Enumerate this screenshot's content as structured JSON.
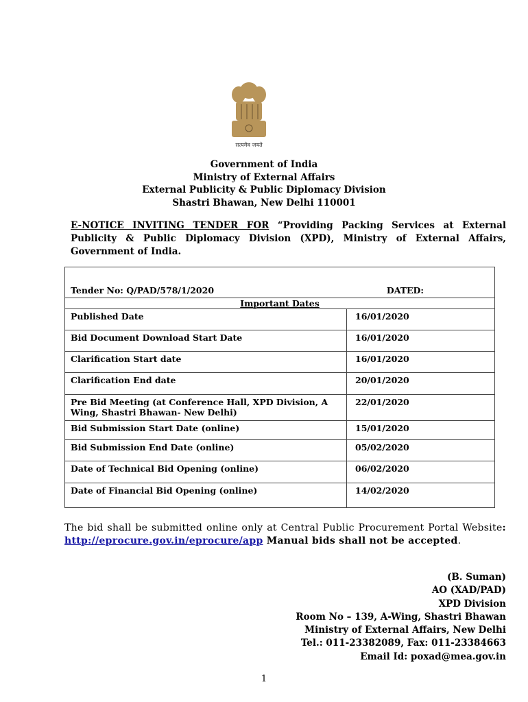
{
  "emblem": {
    "motto": "सत्यमेव जयते"
  },
  "header": [
    "Government of India",
    "Ministry of External Affairs",
    "External Publicity & Public Diplomacy Division",
    "Shastri Bhawan, New Delhi 110001"
  ],
  "notice": {
    "prefix": "E-NOTICE INVITING TENDER FOR",
    "text": " “Providing Packing Services at External Publicity & Public Diplomacy Division (XPD), Ministry of External Affairs, Government of India."
  },
  "table": {
    "tender_no": "Tender No: Q/PAD/578/1/2020",
    "dated": "DATED:",
    "section": "Important Dates",
    "rows": [
      {
        "label": "Published Date",
        "date": "16/01/2020"
      },
      {
        "label": "Bid Document Download Start Date",
        "date": "16/01/2020"
      },
      {
        "label": "Clarification Start date",
        "date": "16/01/2020"
      },
      {
        "label": "Clarification End date",
        "date": "20/01/2020"
      },
      {
        "label": "Pre Bid Meeting (at Conference Hall, XPD Division, A Wing, Shastri Bhawan- New Delhi)",
        "date": "22/01/2020"
      },
      {
        "label": "Bid Submission Start Date (online)",
        "date": "15/01/2020"
      },
      {
        "label": "Bid Submission End Date (online)",
        "date": "05/02/2020"
      },
      {
        "label": "Date of Technical Bid Opening (online)",
        "date": "06/02/2020"
      },
      {
        "label": "Date of Financial Bid Opening (online)",
        "date": "14/02/2020"
      }
    ]
  },
  "para": {
    "text1": "The bid shall be submitted online only at Central Public Procurement Portal Website",
    "colon": ": ",
    "link": "http://eprocure.gov.in/eprocure/app",
    "text2": "  Manual bids shall not be ",
    "bold": "accepted",
    "end": "."
  },
  "signature": [
    "(B. Suman)",
    "AO (XAD/PAD)",
    "XPD Division",
    "Room No – 139, A-Wing, Shastri Bhawan",
    "Ministry of External Affairs, New Delhi",
    "Tel.: 011-23382089, Fax: 011-23384663",
    "Email Id: poxad@mea.gov.in"
  ],
  "page_number": "1"
}
